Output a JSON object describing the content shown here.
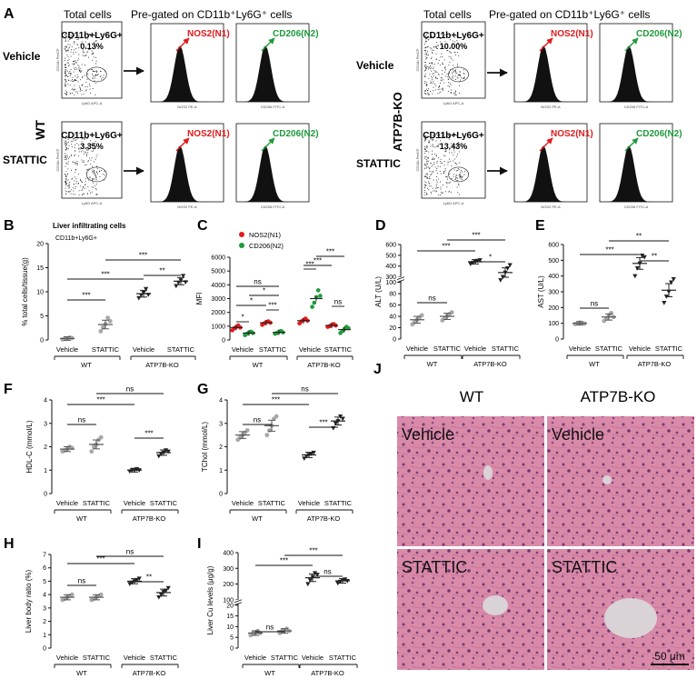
{
  "colors": {
    "n1_red": "#e3191c",
    "n2_green": "#1f9a3b",
    "vehicle_gray": "#a8a8a8",
    "ko_dark": "#222222",
    "he_pink": "#d98aa8",
    "he_purple": "#7a3f7a",
    "vessel": "#d9d2d6"
  },
  "panelA": {
    "letter": "A",
    "wt_label": "WT",
    "ko_label": "ATP7B-KO",
    "total_cells": "Total cells",
    "pregated": "Pre-gated on CD11b⁺Ly6G⁺ cells",
    "row_vehicle": "Vehicle",
    "row_stattic": "STATTIC",
    "gate_label": "CD11b+Ly6G+",
    "pct_wt_vehicle": "0.13%",
    "pct_wt_stattic": "3.35%",
    "pct_ko_vehicle": "10.00%",
    "pct_ko_stattic": "13.43%",
    "n1_label": "NOS2(N1)",
    "n2_label": "CD206(N2)",
    "dot_xaxis": "Ly6G APC-A",
    "dot_yaxis": "CD11b PerCP",
    "hist_n1_xaxis": "NOS2 PE-A",
    "hist_n2_xaxis": "CD206 FITC-A",
    "hist_yaxis": "Count"
  },
  "panelB": {
    "letter": "B",
    "title": "Liver infiltrating cells",
    "subtitle": "CD11b+Ly6G+",
    "ylabel": "% total cells/tissue(g)",
    "ytick_labels": [
      "0",
      "5",
      "10",
      "15",
      "20"
    ],
    "sig": [
      "***",
      "***",
      "***",
      "**"
    ]
  },
  "panelC": {
    "letter": "C",
    "ylabel": "MFI",
    "legend_n1": "NOS2(N1)",
    "legend_n2": "CD206(N2)",
    "ytick_labels": [
      "0",
      "1000",
      "2000",
      "3000",
      "4000",
      "5000",
      "6000"
    ],
    "sig": [
      "*",
      "*",
      "***",
      "ns",
      "*",
      "***",
      "***",
      "***",
      "ns"
    ]
  },
  "panelD": {
    "letter": "D",
    "ylabel": "ALT (U/L)",
    "ytick_labels": [
      "0",
      "20",
      "40",
      "60",
      "80",
      "100",
      "300",
      "400",
      "500",
      "600"
    ],
    "sig": [
      "ns",
      "***",
      "***",
      "*"
    ]
  },
  "panelE": {
    "letter": "E",
    "ylabel": "AST (U/L)",
    "ytick_labels": [
      "0",
      "100",
      "200",
      "300",
      "400",
      "500",
      "600"
    ],
    "sig": [
      "ns",
      "***",
      "**",
      "**"
    ]
  },
  "panelF": {
    "letter": "F",
    "ylabel": "HDL-C (mmol/L)",
    "ytick_labels": [
      "0",
      "1",
      "2",
      "3",
      "4"
    ],
    "sig": [
      "ns",
      "***",
      "ns",
      "***"
    ]
  },
  "panelG": {
    "letter": "G",
    "ylabel": "TChol (mmol/L)",
    "ytick_labels": [
      "0",
      "1",
      "2",
      "3",
      "4"
    ],
    "sig": [
      "ns",
      "***",
      "ns",
      "***"
    ]
  },
  "panelH": {
    "letter": "H",
    "ylabel": "Liver body ratio (%)",
    "ytick_labels": [
      "0",
      "1",
      "2",
      "3",
      "4",
      "5",
      "6",
      "7"
    ],
    "sig": [
      "ns",
      "***",
      "ns",
      "**"
    ]
  },
  "panelI": {
    "letter": "I",
    "ylabel": "Liver Cu levels (μg/g)",
    "ytick_labels": [
      "0",
      "5",
      "10",
      "15",
      "20",
      "100",
      "200",
      "300",
      "400"
    ],
    "sig": [
      "ns",
      "***",
      "***",
      "ns"
    ]
  },
  "xaxis": {
    "vehicle": "Vehicle",
    "stattic": "STATTIC",
    "wt": "WT",
    "ko": "ATP7B-KO"
  },
  "panelJ": {
    "letter": "J",
    "col_wt": "WT",
    "col_ko": "ATP7B-KO",
    "vehicle": "Vehicle",
    "stattic": "STATTIC",
    "scalebar": "50 μm"
  },
  "chart_data": [
    {
      "type": "scatter",
      "panel": "B",
      "title": "Liver infiltrating cells",
      "ylabel": "% total cells/tissue(g)",
      "categories": [
        "WT Vehicle",
        "WT STATTIC",
        "ATP7B-KO Vehicle",
        "ATP7B-KO STATTIC"
      ],
      "ylim": [
        0,
        20
      ],
      "means": [
        0.3,
        3.2,
        9.6,
        12.2
      ],
      "points": [
        [
          0.1,
          0.2,
          0.3,
          0.5,
          0.4
        ],
        [
          1.8,
          2.6,
          3.3,
          4.6,
          3.9
        ],
        [
          8.7,
          9.3,
          9.8,
          10.6,
          9.4
        ],
        [
          11.2,
          11.9,
          12.4,
          13.3,
          12.0
        ]
      ]
    },
    {
      "type": "scatter",
      "panel": "C",
      "ylabel": "MFI",
      "ylim": [
        0,
        6000
      ],
      "categories": [
        "WT Vehicle",
        "WT STATTIC",
        "ATP7B-KO Vehicle",
        "ATP7B-KO STATTIC"
      ],
      "series": [
        {
          "name": "NOS2(N1)",
          "means": [
            900,
            1250,
            1400,
            1050
          ],
          "points": [
            [
              700,
              850,
              950,
              1050,
              900
            ],
            [
              1100,
              1200,
              1300,
              1350,
              1250
            ],
            [
              1200,
              1350,
              1450,
              1550,
              1400
            ],
            [
              950,
              1000,
              1100,
              1150,
              1050
            ]
          ]
        },
        {
          "name": "CD206(N2)",
          "means": [
            500,
            550,
            3000,
            750
          ],
          "points": [
            [
              350,
              450,
              550,
              600,
              500
            ],
            [
              450,
              500,
              600,
              650,
              550
            ],
            [
              2400,
              2700,
              3100,
              3600,
              3200
            ],
            [
              500,
              650,
              800,
              950,
              850
            ]
          ]
        }
      ]
    },
    {
      "type": "scatter",
      "panel": "D",
      "ylabel": "ALT (U/L)",
      "categories": [
        "WT Vehicle",
        "WT STATTIC",
        "ATP7B-KO Vehicle",
        "ATP7B-KO STATTIC"
      ],
      "means": [
        34,
        40,
        440,
        340
      ],
      "points": [
        [
          26,
          30,
          34,
          38,
          42
        ],
        [
          33,
          37,
          41,
          44,
          47
        ],
        [
          420,
          430,
          440,
          450,
          455
        ],
        [
          270,
          300,
          340,
          380,
          410
        ]
      ]
    },
    {
      "type": "scatter",
      "panel": "E",
      "ylabel": "AST (U/L)",
      "ylim": [
        0,
        600
      ],
      "categories": [
        "WT Vehicle",
        "WT STATTIC",
        "ATP7B-KO Vehicle",
        "ATP7B-KO STATTIC"
      ],
      "means": [
        100,
        140,
        480,
        310
      ],
      "points": [
        [
          95,
          100,
          105,
          100,
          98
        ],
        [
          115,
          130,
          150,
          165,
          140
        ],
        [
          400,
          450,
          480,
          530,
          520
        ],
        [
          230,
          270,
          300,
          360,
          380
        ]
      ]
    },
    {
      "type": "scatter",
      "panel": "F",
      "ylabel": "HDL-C (mmol/L)",
      "ylim": [
        0,
        4
      ],
      "categories": [
        "WT Vehicle",
        "WT STATTIC",
        "ATP7B-KO Vehicle",
        "ATP7B-KO STATTIC"
      ],
      "means": [
        1.9,
        2.1,
        1.0,
        1.75
      ],
      "points": [
        [
          1.8,
          1.85,
          1.9,
          2.0,
          1.95
        ],
        [
          1.8,
          2.0,
          2.1,
          2.3,
          2.4
        ],
        [
          0.95,
          1.0,
          1.0,
          1.05,
          1.0
        ],
        [
          1.6,
          1.7,
          1.75,
          1.85,
          1.8
        ]
      ]
    },
    {
      "type": "scatter",
      "panel": "G",
      "ylabel": "TChol (mmol/L)",
      "ylim": [
        0,
        4
      ],
      "categories": [
        "WT Vehicle",
        "WT STATTIC",
        "ATP7B-KO Vehicle",
        "ATP7B-KO STATTIC"
      ],
      "means": [
        2.5,
        2.9,
        1.65,
        3.1
      ],
      "points": [
        [
          2.3,
          2.4,
          2.5,
          2.6,
          2.7
        ],
        [
          2.5,
          2.7,
          2.9,
          3.2,
          3.3
        ],
        [
          1.5,
          1.6,
          1.65,
          1.7,
          1.75
        ],
        [
          2.8,
          3.0,
          3.1,
          3.3,
          3.2
        ]
      ]
    },
    {
      "type": "scatter",
      "panel": "H",
      "ylabel": "Liver body ratio (%)",
      "ylim": [
        0,
        7
      ],
      "categories": [
        "WT Vehicle",
        "WT STATTIC",
        "ATP7B-KO Vehicle",
        "ATP7B-KO STATTIC"
      ],
      "means": [
        3.8,
        3.8,
        5.0,
        4.15
      ],
      "points": [
        [
          3.6,
          3.7,
          3.8,
          3.9,
          4.0
        ],
        [
          3.6,
          3.7,
          3.8,
          3.9,
          4.0
        ],
        [
          4.8,
          4.9,
          5.0,
          5.1,
          5.2
        ],
        [
          3.8,
          4.0,
          4.2,
          4.3,
          4.5
        ]
      ]
    },
    {
      "type": "scatter",
      "panel": "I",
      "ylabel": "Liver Cu levels (μg/g)",
      "categories": [
        "WT Vehicle",
        "WT STATTIC",
        "ATP7B-KO Vehicle",
        "ATP7B-KO STATTIC"
      ],
      "means": [
        7,
        8,
        240,
        220
      ],
      "points": [
        [
          6,
          7,
          7,
          8,
          7
        ],
        [
          7,
          8,
          8,
          9,
          8
        ],
        [
          200,
          225,
          245,
          270,
          260
        ],
        [
          205,
          215,
          225,
          230,
          220
        ]
      ]
    }
  ]
}
